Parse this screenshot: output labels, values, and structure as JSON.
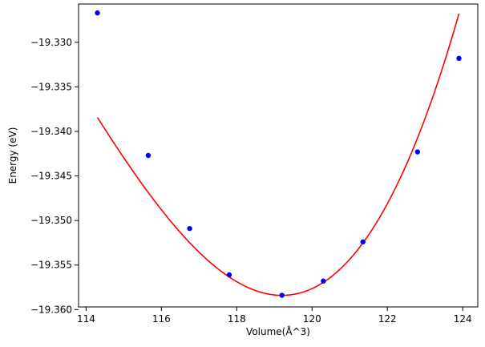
{
  "chart_data": {
    "type": "scatter",
    "title": "",
    "xlabel": "Volume(Å^3)",
    "ylabel": "Energy (eV)",
    "xlim": [
      113.8,
      124.4
    ],
    "ylim": [
      -19.3597,
      -19.3257
    ],
    "xticks": [
      114,
      116,
      118,
      120,
      122,
      124
    ],
    "xtick_labels": [
      "114",
      "116",
      "118",
      "120",
      "122",
      "124"
    ],
    "yticks": [
      -19.36,
      -19.355,
      -19.35,
      -19.345,
      -19.34,
      -19.335,
      -19.33
    ],
    "ytick_labels": [
      "−19.360",
      "−19.355",
      "−19.350",
      "−19.345",
      "−19.340",
      "−19.335",
      "−19.330"
    ],
    "grid": false,
    "series": [
      {
        "kind": "points",
        "color": "#0000ff",
        "x": [
          114.3,
          115.65,
          116.75,
          117.8,
          119.2,
          120.3,
          121.35,
          122.8,
          123.9
        ],
        "y": [
          -19.3267,
          -19.3427,
          -19.3509,
          -19.3561,
          -19.3584,
          -19.3568,
          -19.3524,
          -19.3423,
          -19.3318
        ]
      },
      {
        "kind": "fit-curve",
        "color": "#ff0000",
        "x_range": [
          114.3,
          123.9
        ],
        "min_x": 119.2,
        "min_y": -19.3584,
        "a": 0.001138,
        "b": 6.25e-05
      }
    ]
  }
}
